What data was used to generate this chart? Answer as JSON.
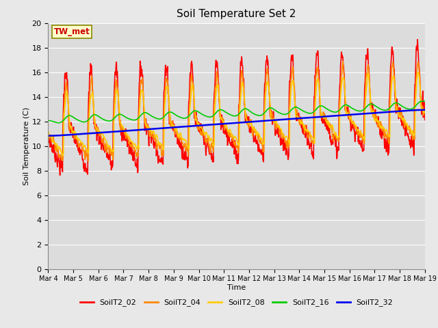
{
  "title": "Soil Temperature Set 2",
  "xlabel": "Time",
  "ylabel": "Soil Temperature (C)",
  "annotation": "TW_met",
  "ylim": [
    0,
    20
  ],
  "yticks": [
    0,
    2,
    4,
    6,
    8,
    10,
    12,
    14,
    16,
    18,
    20
  ],
  "xtick_labels": [
    "Mar 4",
    "Mar 5",
    "Mar 6",
    "Mar 7",
    "Mar 8",
    "Mar 9",
    "Mar 10",
    "Mar 11",
    "Mar 12",
    "Mar 13",
    "Mar 14",
    "Mar 15",
    "Mar 16",
    "Mar 17",
    "Mar 18",
    "Mar 19"
  ],
  "series_names": [
    "SoilT2_02",
    "SoilT2_04",
    "SoilT2_08",
    "SoilT2_16",
    "SoilT2_32"
  ],
  "series_colors": [
    "#ff0000",
    "#ff8800",
    "#ffcc00",
    "#00cc00",
    "#0000ee"
  ],
  "series_linewidths": [
    1.2,
    1.2,
    1.2,
    1.2,
    1.8
  ],
  "background_color": "#e8e8e8",
  "plot_bg_color": "#dcdcdc",
  "grid_color": "#ffffff",
  "n_points": 1440,
  "days": 15
}
